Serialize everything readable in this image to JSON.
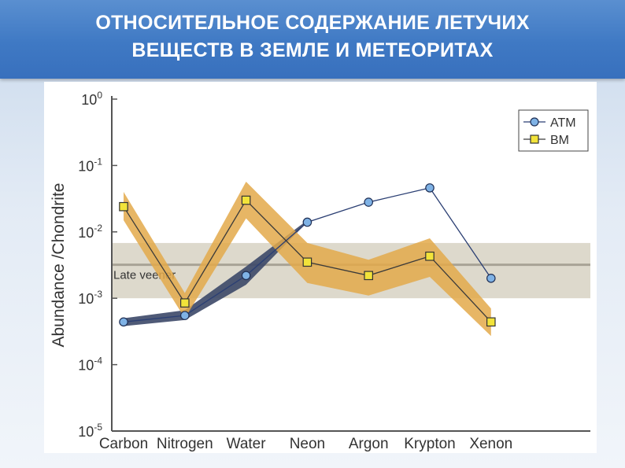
{
  "slide": {
    "title_line1": "ОТНОСИТЕЛЬНОЕ СОДЕРЖАНИЕ ЛЕТУЧИХ",
    "title_line2": "ВЕЩЕСТВ В ЗЕМЛЕ И МЕТЕОРИТАХ"
  },
  "chart_data": {
    "type": "line",
    "title": "",
    "xlabel": "",
    "ylabel": "Abundance /Chondrite",
    "y_scale": "log",
    "ylim": [
      1e-05,
      1
    ],
    "y_ticks": [
      {
        "base": "10",
        "exp": "0"
      },
      {
        "base": "10",
        "exp": "-1"
      },
      {
        "base": "10",
        "exp": "-2"
      },
      {
        "base": "10",
        "exp": "-3"
      },
      {
        "base": "10",
        "exp": "-4"
      },
      {
        "base": "10",
        "exp": "-5"
      }
    ],
    "categories": [
      "Carbon",
      "Nitrogen",
      "Water",
      "Neon",
      "Argon",
      "Krypton",
      "Xenon"
    ],
    "series": [
      {
        "name": "ATM",
        "marker": "circle",
        "line_color": "#2b3f73",
        "marker_color": "#7fb2e5",
        "band_color": "#3c4868",
        "values": [
          0.00044,
          0.00055,
          0.0022,
          0.014,
          0.028,
          0.046,
          0.002
        ],
        "band_low": [
          0.00038,
          0.00047,
          0.0016,
          null,
          null,
          null,
          null
        ],
        "band_high": [
          0.0005,
          0.00066,
          0.003,
          0.015,
          null,
          null,
          null
        ]
      },
      {
        "name": "BM",
        "marker": "square",
        "line_color": "#3a3a3a",
        "marker_color": "#f2e33a",
        "band_color": "#e3a94a",
        "values": [
          0.024,
          0.00085,
          0.03,
          0.0035,
          0.0022,
          0.0043,
          0.00044
        ],
        "band_low": [
          0.015,
          0.0005,
          0.016,
          0.0017,
          0.0011,
          0.0021,
          0.00027
        ],
        "band_high": [
          0.04,
          0.0012,
          0.057,
          0.0068,
          0.0038,
          0.008,
          0.0007
        ]
      }
    ],
    "annotation": {
      "label": "Late veener",
      "value": 0.0032,
      "range": [
        0.001,
        0.0068
      ],
      "band_color": "#ddd9cc",
      "line_color": "#a8a396"
    },
    "legend": {
      "placement": "top-right"
    },
    "grid": false
  }
}
